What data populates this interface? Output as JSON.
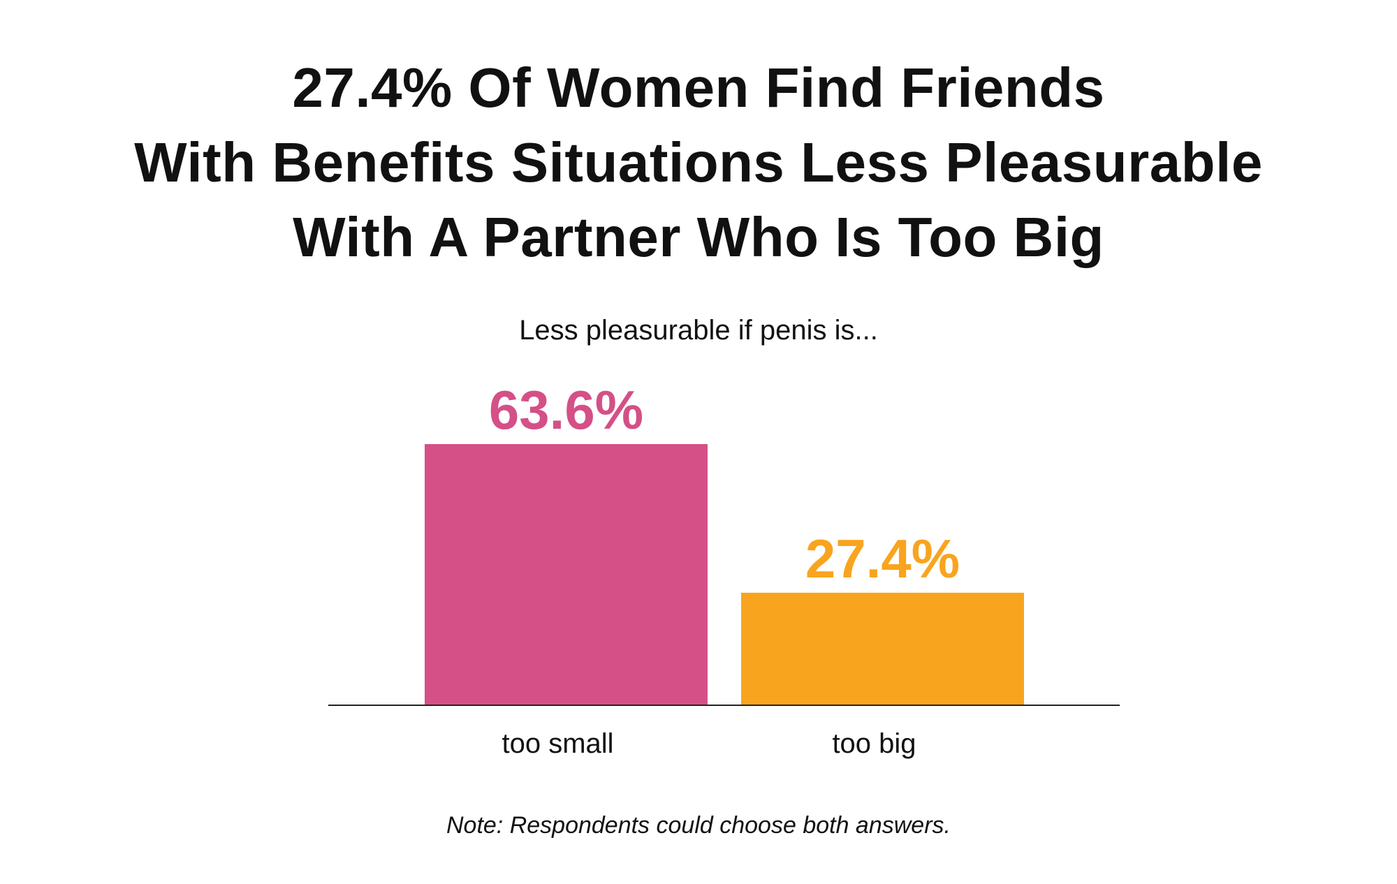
{
  "title_lines": [
    "27.4% Of Women Find Friends",
    "With Benefits Situations Less Pleasurable",
    "With A Partner Who Is Too Big"
  ],
  "subtitle": "Less pleasurable if penis is...",
  "note": "Note: Respondents could choose both answers.",
  "chart_data": {
    "type": "bar",
    "title": "27.4% Of Women Find Friends With Benefits Situations Less Pleasurable With A Partner Who Is Too Big",
    "subtitle": "Less pleasurable if penis is...",
    "categories": [
      "too small",
      "too big"
    ],
    "values": [
      63.6,
      27.4
    ],
    "value_labels": [
      "63.6%",
      "27.4%"
    ],
    "colors": [
      "#d45087",
      "#f9a41e"
    ],
    "xlabel": "",
    "ylabel": "",
    "ylim": [
      0,
      63.6
    ],
    "grid": false,
    "legend": "none"
  }
}
